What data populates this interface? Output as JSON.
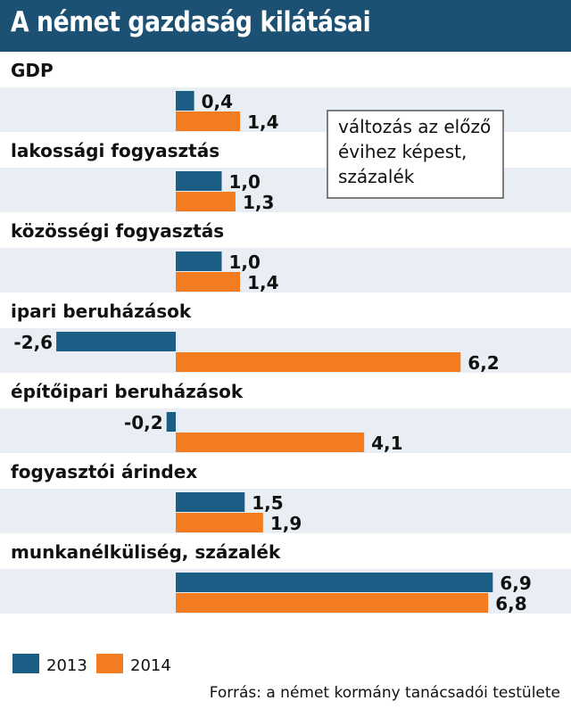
{
  "title": "A német gazdaság kilátásai",
  "colors": {
    "title_bg": "#1d5173",
    "band_alt": "#e9eef4",
    "series_2013": "#1a5e86",
    "series_2014": "#f47c20"
  },
  "note": [
    "változás az előző",
    "évihez képest,",
    "százalék"
  ],
  "source": "Forrás: a német kormány tanácsadói testülete",
  "chart_data": {
    "type": "bar",
    "orientation": "horizontal",
    "title": "A német gazdaság kilátásai",
    "categories": [
      "GDP",
      "lakossági fogyasztás",
      "közösségi fogyasztás",
      "ipari beruházások",
      "építőipari beruházások",
      "fogyasztói árindex",
      "munkanélküliség, százalék"
    ],
    "series": [
      {
        "name": "2013",
        "values": [
          0.4,
          1.0,
          1.0,
          -2.6,
          -0.2,
          1.5,
          6.9
        ],
        "labels": [
          "0,4",
          "1,0",
          "1,0",
          "-2,6",
          "-0,2",
          "1,5",
          "6,9"
        ]
      },
      {
        "name": "2014",
        "values": [
          1.4,
          1.3,
          1.4,
          6.2,
          4.1,
          1.9,
          6.8
        ],
        "labels": [
          "1,4",
          "1,3",
          "1,4",
          "6,2",
          "4,1",
          "1,9",
          "6,8"
        ]
      }
    ],
    "legend": [
      "2013",
      "2014"
    ],
    "legend_position": "bottom-left",
    "xlim": [
      -2.6,
      6.9
    ]
  }
}
